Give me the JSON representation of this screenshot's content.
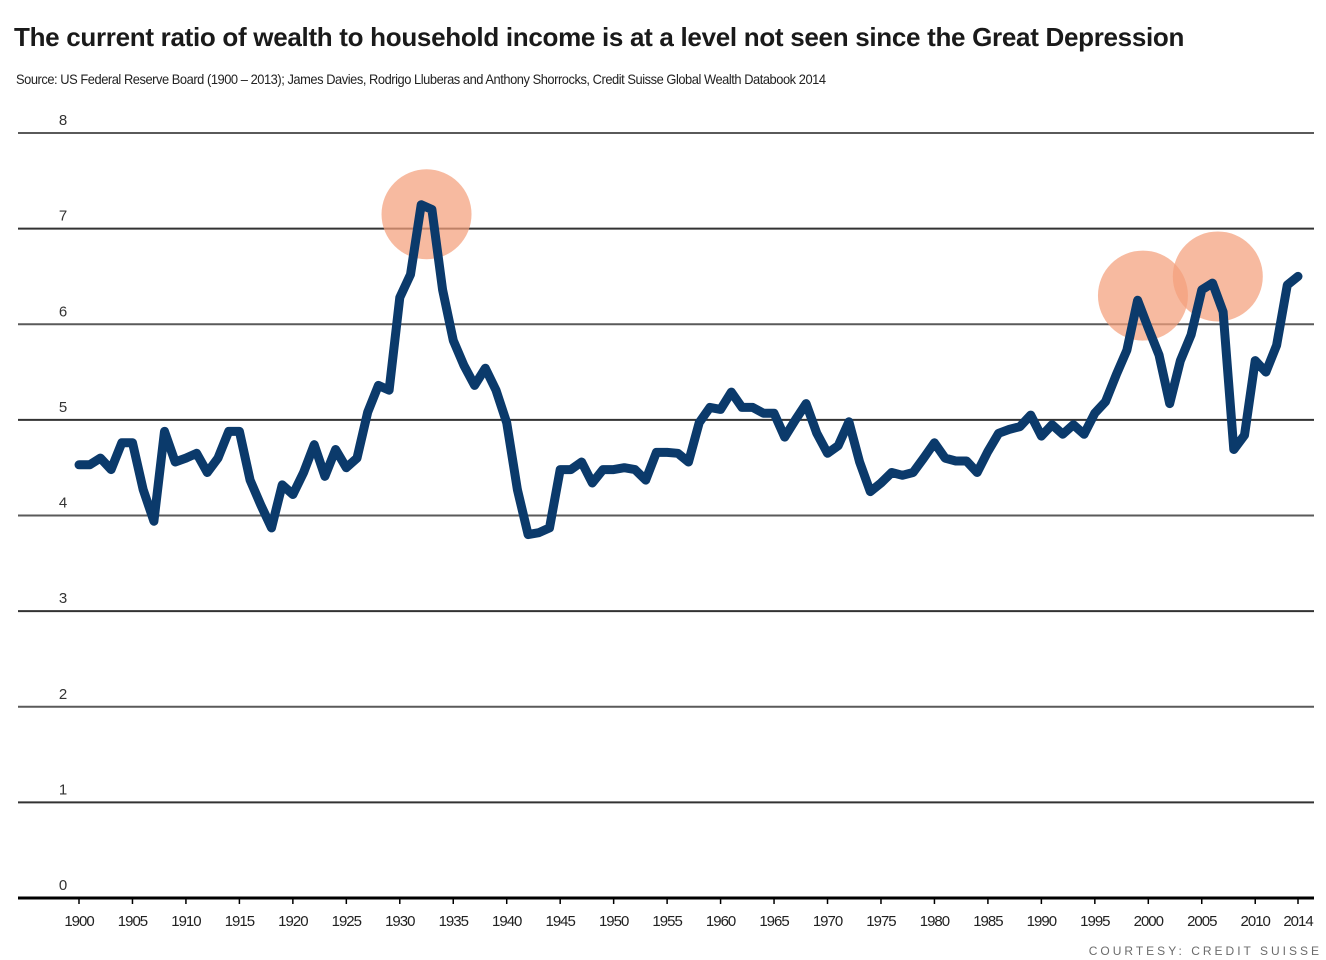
{
  "header": {
    "title": "The current ratio of wealth to household income is at a level not seen since the Great Depression",
    "source": "Source: US Federal Reserve Board (1900 – 2013); James Davies, Rodrigo Lluberas and Anthony Shorrocks, Credit Suisse Global Wealth Databook 2014"
  },
  "footer": {
    "courtesy": "COURTESY: CREDIT SUISSE"
  },
  "colors": {
    "line": "#0b3a6b",
    "highlight": "#f4a07c",
    "grid": "#333333"
  },
  "chart_data": {
    "type": "line",
    "title": "The current ratio of wealth to household income is at a level not seen since the Great Depression",
    "xlabel": "",
    "ylabel": "",
    "ylim": [
      0,
      8
    ],
    "xlim": [
      1900,
      2014
    ],
    "yticks": [
      0,
      1,
      2,
      3,
      4,
      5,
      6,
      7,
      8
    ],
    "xticks": [
      "1900",
      "1905",
      "1910",
      "1915",
      "1920",
      "1925",
      "1930",
      "1935",
      "1940",
      "1945",
      "1950",
      "1955",
      "1960",
      "1965",
      "1970",
      "1975",
      "1980",
      "1985",
      "1990",
      "1995",
      "2000",
      "2005",
      "2010",
      "2014"
    ],
    "grid": "horizontal",
    "series": [
      {
        "name": "Ratio of wealth to household income",
        "x": [
          1900,
          1901,
          1902,
          1903,
          1904,
          1905,
          1906,
          1907,
          1908,
          1909,
          1910,
          1911,
          1912,
          1913,
          1914,
          1915,
          1916,
          1917,
          1918,
          1919,
          1920,
          1921,
          1922,
          1923,
          1924,
          1925,
          1926,
          1927,
          1928,
          1929,
          1930,
          1931,
          1932,
          1933,
          1934,
          1935,
          1936,
          1937,
          1938,
          1939,
          1940,
          1941,
          1942,
          1943,
          1944,
          1945,
          1946,
          1947,
          1948,
          1949,
          1950,
          1951,
          1952,
          1953,
          1954,
          1955,
          1956,
          1957,
          1958,
          1959,
          1960,
          1961,
          1962,
          1963,
          1964,
          1965,
          1966,
          1967,
          1968,
          1969,
          1970,
          1971,
          1972,
          1973,
          1974,
          1975,
          1976,
          1977,
          1978,
          1979,
          1980,
          1981,
          1982,
          1983,
          1984,
          1985,
          1986,
          1987,
          1988,
          1989,
          1990,
          1991,
          1992,
          1993,
          1994,
          1995,
          1996,
          1997,
          1998,
          1999,
          2000,
          2001,
          2002,
          2003,
          2004,
          2005,
          2006,
          2007,
          2008,
          2009,
          2010,
          2011,
          2012,
          2013,
          2014
        ],
        "values": [
          4.53,
          4.53,
          4.6,
          4.48,
          4.76,
          4.76,
          4.27,
          3.94,
          4.88,
          4.56,
          4.6,
          4.65,
          4.45,
          4.6,
          4.88,
          4.88,
          4.37,
          4.11,
          3.87,
          4.32,
          4.22,
          4.45,
          4.74,
          4.41,
          4.69,
          4.5,
          4.6,
          5.08,
          5.36,
          5.31,
          6.28,
          6.52,
          7.25,
          7.2,
          6.36,
          5.83,
          5.57,
          5.36,
          5.54,
          5.31,
          4.97,
          4.27,
          3.8,
          3.82,
          3.87,
          4.48,
          4.48,
          4.56,
          4.34,
          4.48,
          4.48,
          4.5,
          4.48,
          4.37,
          4.66,
          4.66,
          4.65,
          4.56,
          4.97,
          5.13,
          5.11,
          5.29,
          5.13,
          5.13,
          5.07,
          5.07,
          4.82,
          5.0,
          5.17,
          4.86,
          4.65,
          4.73,
          4.98,
          4.56,
          4.25,
          4.34,
          4.45,
          4.42,
          4.45,
          4.6,
          4.76,
          4.6,
          4.57,
          4.57,
          4.45,
          4.67,
          4.86,
          4.9,
          4.93,
          5.05,
          4.83,
          4.95,
          4.85,
          4.95,
          4.85,
          5.07,
          5.19,
          5.47,
          5.73,
          6.25,
          5.96,
          5.68,
          5.17,
          5.62,
          5.89,
          6.36,
          6.43,
          6.13,
          4.69,
          4.84,
          5.62,
          5.5,
          5.78,
          6.41,
          6.5
        ]
      }
    ],
    "annotations": [
      {
        "type": "highlight-circle",
        "x": 1932.5,
        "y": 7.15,
        "label": "Great Depression peak"
      },
      {
        "type": "highlight-circle",
        "x": 1999.5,
        "y": 6.3,
        "label": "Dot-com peak"
      },
      {
        "type": "highlight-circle",
        "x": 2006.5,
        "y": 6.5,
        "label": "Housing peak"
      }
    ]
  }
}
